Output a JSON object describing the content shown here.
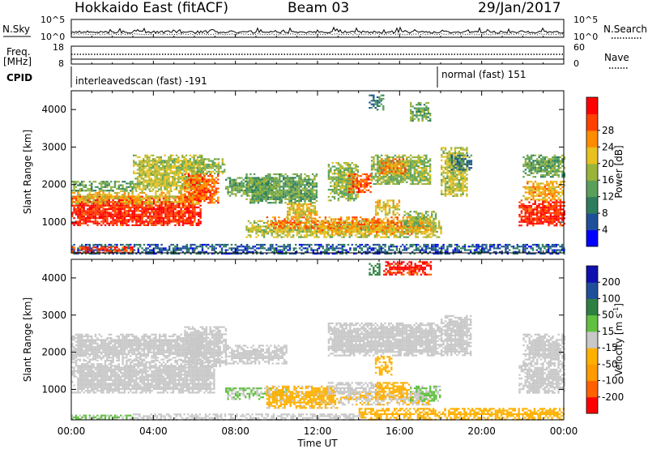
{
  "header": {
    "title": "Hokkaido East (fitACF)",
    "beam": "Beam 03",
    "date": "29/Jan/2017"
  },
  "params": {
    "nsky_label": "N.Sky",
    "nsearch_label": "N.Search",
    "nsky_ticks": [
      "10^5",
      "10^0"
    ],
    "nsearch_ticks": [
      "10^5",
      "10^0"
    ],
    "freq_label_1": "Freq.",
    "freq_label_2": "[MHz]",
    "freq_ticks": [
      "18",
      "8"
    ],
    "nave_label": "Nave",
    "nave_ticks": [
      "60",
      "0"
    ],
    "cpid_label": "CPID",
    "cpid_1": "interleavedscan (fast) -191",
    "cpid_2": "normal (fast) 151"
  },
  "colors": {
    "power": [
      "#0000ff",
      "#1f4f9a",
      "#2e7d5e",
      "#5aa05a",
      "#9ab43a",
      "#e8c020",
      "#ff8c00",
      "#ff4000",
      "#ff0000"
    ],
    "velocity": [
      "#ff0000",
      "#ff6000",
      "#ff9a00",
      "#ffb000",
      "#c8c8c8",
      "#60c040",
      "#2e8040",
      "#1f4f9a",
      "#1010b0"
    ]
  },
  "chart_data": [
    {
      "type": "heatmap",
      "title": "Power",
      "ylabel": "Slant Range [km]",
      "xlabel": "Time UT",
      "x_ticks": [
        "00:00",
        "04:00",
        "08:00",
        "12:00",
        "16:00",
        "20:00",
        "00:00"
      ],
      "xlim_hours": [
        0,
        24
      ],
      "y_ticks": [
        "1000",
        "2000",
        "3000",
        "4000"
      ],
      "ylim": [
        180,
        4500
      ],
      "colorbar_label": "Power [dB]",
      "colorbar_ticks": [
        "4",
        "8",
        "12",
        "16",
        "20",
        "24",
        "28"
      ],
      "colorbar_range": [
        0,
        30
      ],
      "regions": [
        {
          "t0": 0,
          "t1": 6.3,
          "r0": 900,
          "r1": 1700,
          "v": 27
        },
        {
          "t0": 0,
          "t1": 6.3,
          "r0": 1500,
          "r1": 1850,
          "v": 18
        },
        {
          "t0": 0,
          "t1": 3,
          "r0": 1850,
          "r1": 2100,
          "v": 12
        },
        {
          "t0": 3,
          "t1": 6.5,
          "r0": 1850,
          "r1": 2800,
          "v": 16
        },
        {
          "t0": 5.5,
          "t1": 7.2,
          "r0": 1500,
          "r1": 2300,
          "v": 24
        },
        {
          "t0": 6,
          "t1": 7.5,
          "r0": 2300,
          "r1": 2700,
          "v": 14
        },
        {
          "t0": 7.5,
          "t1": 10,
          "r0": 1700,
          "r1": 2200,
          "v": 12
        },
        {
          "t0": 8.5,
          "t1": 18,
          "r0": 600,
          "r1": 1050,
          "v": 16
        },
        {
          "t0": 9.5,
          "t1": 17.5,
          "r0": 850,
          "r1": 1150,
          "v": 22
        },
        {
          "t0": 12,
          "t1": 17.5,
          "r0": 700,
          "r1": 900,
          "v": 20
        },
        {
          "t0": 8.5,
          "t1": 12,
          "r0": 1500,
          "r1": 2300,
          "v": 12
        },
        {
          "t0": 10.5,
          "t1": 12,
          "r0": 1100,
          "r1": 1500,
          "v": 18
        },
        {
          "t0": 12.5,
          "t1": 14,
          "r0": 1600,
          "r1": 2600,
          "v": 14
        },
        {
          "t0": 13.5,
          "t1": 14.6,
          "r0": 1800,
          "r1": 2300,
          "v": 24
        },
        {
          "t0": 14.6,
          "t1": 17.5,
          "r0": 2000,
          "r1": 2800,
          "v": 14
        },
        {
          "t0": 15,
          "t1": 16.3,
          "r0": 2300,
          "r1": 2700,
          "v": 22
        },
        {
          "t0": 14.8,
          "t1": 16,
          "r0": 1200,
          "r1": 1600,
          "v": 18
        },
        {
          "t0": 16.2,
          "t1": 17.8,
          "r0": 900,
          "r1": 1300,
          "v": 14
        },
        {
          "t0": 16.5,
          "t1": 17.5,
          "r0": 3700,
          "r1": 4200,
          "v": 12
        },
        {
          "t0": 14.5,
          "t1": 15.2,
          "r0": 4000,
          "r1": 4400,
          "v": 8
        },
        {
          "t0": 18,
          "t1": 19.3,
          "r0": 1700,
          "r1": 3000,
          "v": 16
        },
        {
          "t0": 18.5,
          "t1": 19.5,
          "r0": 2400,
          "r1": 2800,
          "v": 8
        },
        {
          "t0": 21.8,
          "t1": 24,
          "r0": 900,
          "r1": 1600,
          "v": 27
        },
        {
          "t0": 22,
          "t1": 24,
          "r0": 1600,
          "r1": 2100,
          "v": 20
        },
        {
          "t0": 22,
          "t1": 24,
          "r0": 2200,
          "r1": 2800,
          "v": 12
        },
        {
          "t0": 0,
          "t1": 24,
          "r0": 180,
          "r1": 420,
          "v": 6
        },
        {
          "t0": 0,
          "t1": 3,
          "r0": 180,
          "r1": 350,
          "v": 26
        }
      ]
    },
    {
      "type": "heatmap",
      "title": "Velocity",
      "ylabel": "Slant Range [km]",
      "xlabel": "Time UT",
      "x_ticks": [
        "00:00",
        "04:00",
        "08:00",
        "12:00",
        "16:00",
        "20:00",
        "00:00"
      ],
      "xlim_hours": [
        0,
        24
      ],
      "y_ticks": [
        "1000",
        "2000",
        "3000",
        "4000"
      ],
      "ylim": [
        180,
        4500
      ],
      "colorbar_label": "Velocity [m s^-1]",
      "colorbar_ticks": [
        "200",
        "100",
        "50",
        "15",
        "-15",
        "-50",
        "-100",
        "-200"
      ],
      "colorbar_range": [
        -250,
        250
      ],
      "regions": [
        {
          "t0": 0,
          "t1": 7,
          "r0": 900,
          "r1": 1800,
          "v": 0
        },
        {
          "t0": 0,
          "t1": 6.5,
          "r0": 1800,
          "r1": 2500,
          "v": 5
        },
        {
          "t0": 5.5,
          "t1": 7.5,
          "r0": 1600,
          "r1": 2700,
          "v": 0
        },
        {
          "t0": 7.5,
          "t1": 10.5,
          "r0": 1700,
          "r1": 2200,
          "v": 0
        },
        {
          "t0": 7.5,
          "t1": 10.5,
          "r0": 750,
          "r1": 1050,
          "v": 30
        },
        {
          "t0": 9.5,
          "t1": 13,
          "r0": 500,
          "r1": 1100,
          "v": -35
        },
        {
          "t0": 13,
          "t1": 17.5,
          "r0": 600,
          "r1": 950,
          "v": -25
        },
        {
          "t0": 12.5,
          "t1": 15,
          "r0": 900,
          "r1": 1200,
          "v": 0
        },
        {
          "t0": 14.8,
          "t1": 16.5,
          "r0": 800,
          "r1": 1200,
          "v": -60
        },
        {
          "t0": 16.5,
          "t1": 18,
          "r0": 700,
          "r1": 1100,
          "v": 30
        },
        {
          "t0": 12.5,
          "t1": 18,
          "r0": 1900,
          "r1": 2800,
          "v": 0
        },
        {
          "t0": 14.8,
          "t1": 15.6,
          "r0": 1400,
          "r1": 1900,
          "v": -60
        },
        {
          "t0": 18,
          "t1": 19.5,
          "r0": 1900,
          "r1": 3000,
          "v": 0
        },
        {
          "t0": 21.8,
          "t1": 24,
          "r0": 900,
          "r1": 1700,
          "v": 0
        },
        {
          "t0": 22,
          "t1": 24,
          "r0": 1700,
          "r1": 2500,
          "v": 5
        },
        {
          "t0": 15.2,
          "t1": 17.5,
          "r0": 4100,
          "r1": 4450,
          "v": -200
        },
        {
          "t0": 14.5,
          "t1": 15,
          "r0": 4100,
          "r1": 4400,
          "v": 120
        },
        {
          "t0": 0,
          "t1": 3,
          "r0": 180,
          "r1": 320,
          "v": 30
        },
        {
          "t0": 14,
          "t1": 24,
          "r0": 180,
          "r1": 500,
          "v": -60
        },
        {
          "t0": 3,
          "t1": 14,
          "r0": 180,
          "r1": 350,
          "v": 10
        }
      ]
    }
  ]
}
